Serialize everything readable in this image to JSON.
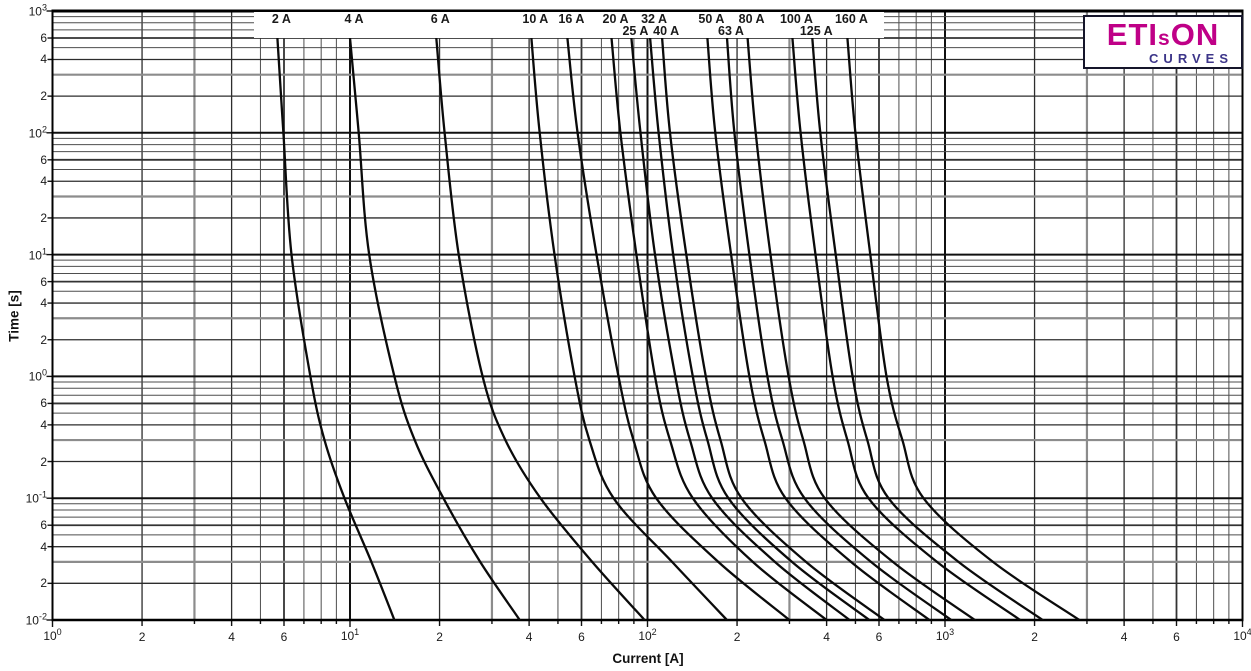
{
  "logo": {
    "brand_part1": "ETI",
    "brand_part_s": "s",
    "brand_part2": "ON",
    "subtitle": "CURVES",
    "brand_color": "#bf0087",
    "subtitle_color": "#3c3589"
  },
  "x_axis": {
    "title": "Current [A]",
    "decades": [
      {
        "base": "10",
        "exp": "0"
      },
      {
        "base": "10",
        "exp": "1"
      },
      {
        "base": "10",
        "exp": "2"
      },
      {
        "base": "10",
        "exp": "3"
      },
      {
        "base": "10",
        "exp": "4"
      }
    ],
    "minor_labels": [
      "2",
      "4",
      "6"
    ]
  },
  "y_axis": {
    "title": "Time [s]",
    "decades": [
      {
        "base": "10",
        "exp": "3"
      },
      {
        "base": "10",
        "exp": "2"
      },
      {
        "base": "10",
        "exp": "1"
      },
      {
        "base": "10",
        "exp": "0"
      },
      {
        "base": "10",
        "exp": "-1"
      },
      {
        "base": "10",
        "exp": "-2"
      }
    ],
    "minor_labels": [
      "6",
      "4",
      "2"
    ]
  },
  "chart_data": {
    "type": "line",
    "title": "",
    "xlabel": "Current [A]",
    "ylabel": "Time [s]",
    "xscale": "log",
    "yscale": "log",
    "xlim": [
      1,
      10000
    ],
    "ylim": [
      0.01,
      1000
    ],
    "grid": "log major + minor (2-9) both axes",
    "legend_position": "top inline white box over plot",
    "curve_color": "#0a0a0a",
    "time_levels_s": [
      600,
      100,
      10,
      1,
      0.3,
      0.1,
      0.03,
      0.01
    ],
    "series": [
      {
        "name": "2 A",
        "label_row": 1,
        "currents_A": [
          5.7,
          5.97,
          6.36,
          7.36,
          8.21,
          9.58,
          11.8,
          14.1
        ]
      },
      {
        "name": "4 A",
        "label_row": 1,
        "currents_A": [
          10.0,
          10.7,
          11.6,
          14.1,
          16.5,
          20.6,
          27.4,
          37.2
        ]
      },
      {
        "name": "6 A",
        "label_row": 1,
        "currents_A": [
          19.5,
          20.8,
          23.2,
          27.9,
          33.3,
          43.7,
          65.2,
          97.8
        ]
      },
      {
        "name": "10 A",
        "label_row": 1,
        "currents_A": [
          40.7,
          43.4,
          48.7,
          56.9,
          63.8,
          76.9,
          121,
          185
        ]
      },
      {
        "name": "16 A",
        "label_row": 1,
        "currents_A": [
          53.8,
          58.2,
          67.4,
          79.9,
          89.7,
          107,
          173,
          300
        ]
      },
      {
        "name": "20 A",
        "label_row": 1,
        "currents_A": [
          75.7,
          81.1,
          91.8,
          106,
          119,
          142,
          226,
          400
        ]
      },
      {
        "name": "25 A",
        "label_row": 2,
        "currents_A": [
          88.3,
          94.7,
          106,
          124,
          139,
          165,
          268,
          478
        ]
      },
      {
        "name": "32 A",
        "label_row": 1,
        "currents_A": [
          102,
          109,
          122,
          142,
          159,
          187,
          306,
          557
        ]
      },
      {
        "name": "40 A",
        "label_row": 2,
        "currents_A": [
          112,
          119,
          135,
          157,
          176,
          207,
          341,
          626
        ]
      },
      {
        "name": "50 A",
        "label_row": 1,
        "currents_A": [
          159,
          169,
          191,
          220,
          247,
          291,
          483,
          887
        ]
      },
      {
        "name": "63 A",
        "label_row": 2,
        "currents_A": [
          185,
          196,
          220,
          253,
          284,
          337,
          564,
          1050
        ]
      },
      {
        "name": "80 A",
        "label_row": 1,
        "currents_A": [
          217,
          231,
          259,
          298,
          334,
          394,
          668,
          1260
        ]
      },
      {
        "name": "100 A",
        "label_row": 1,
        "currents_A": [
          307,
          327,
          367,
          419,
          470,
          553,
          940,
          1790
        ]
      },
      {
        "name": "125 A",
        "label_row": 2,
        "currents_A": [
          358,
          381,
          429,
          489,
          548,
          646,
          1110,
          2130
        ]
      },
      {
        "name": "160 A",
        "label_row": 1,
        "currents_A": [
          470,
          500,
          561,
          636,
          719,
          847,
          1450,
          2830
        ]
      }
    ]
  }
}
